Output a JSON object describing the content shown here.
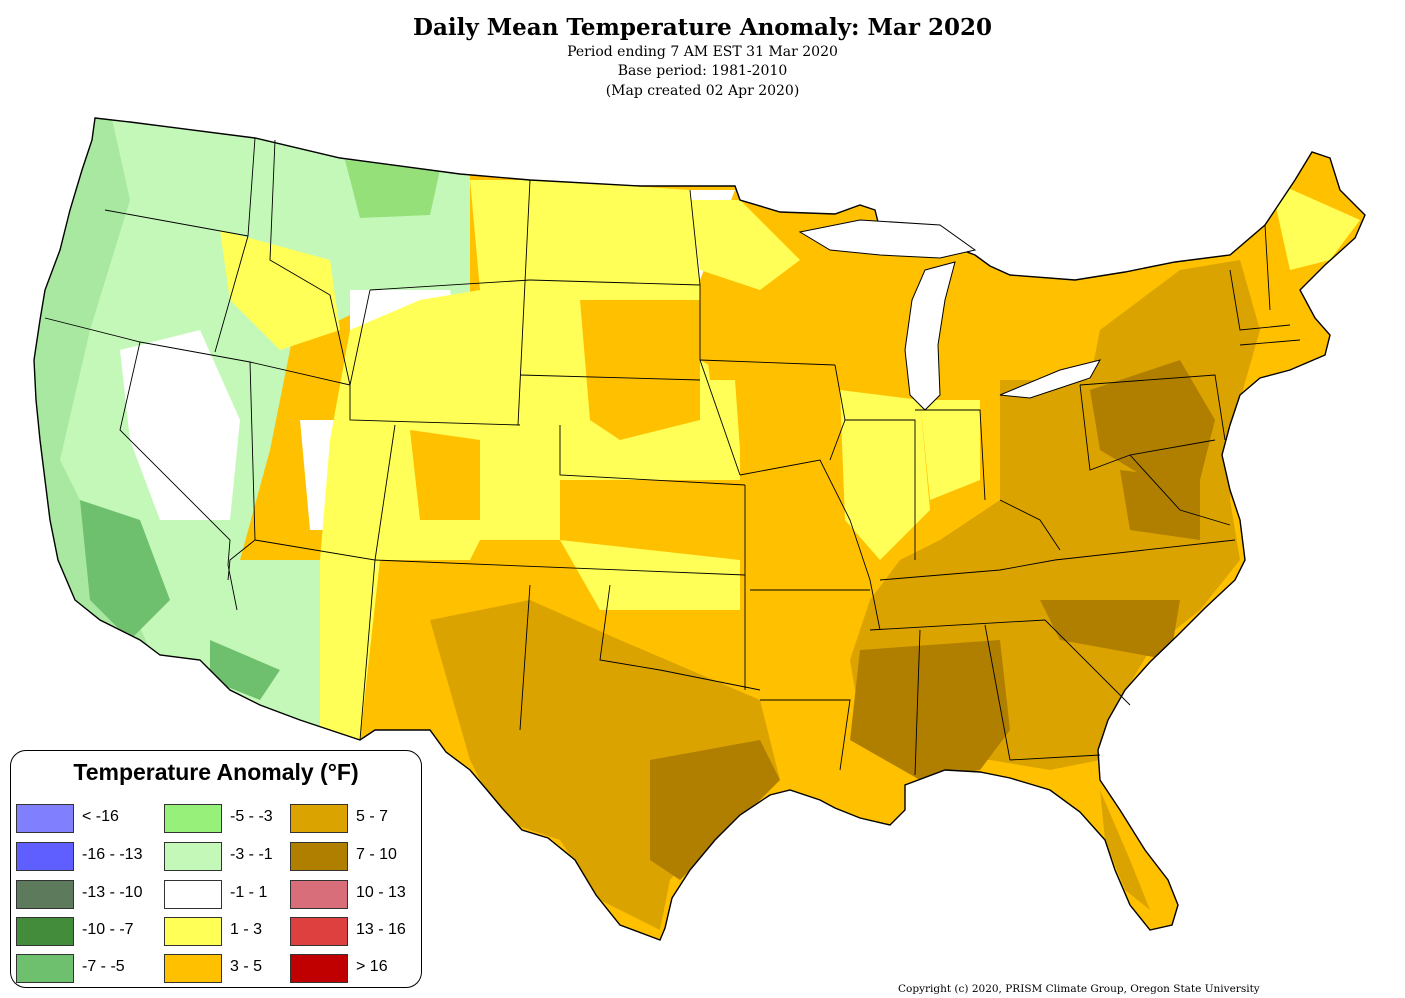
{
  "header": {
    "title": "Daily Mean Temperature Anomaly: Mar 2020",
    "line1": "Period ending 7 AM EST 31 Mar 2020",
    "line2": "Base period: 1981-2010",
    "line3": "(Map created 02 Apr 2020)"
  },
  "legend": {
    "title": "Temperature Anomaly (°F)",
    "items": [
      {
        "label": "< -16",
        "color": "#8080ff"
      },
      {
        "label": "-16 - -13",
        "color": "#5f5fff"
      },
      {
        "label": "-13 - -10",
        "color": "#5e7a5c"
      },
      {
        "label": "-10 - -7",
        "color": "#438c3c"
      },
      {
        "label": "-7 - -5",
        "color": "#6ec06e"
      },
      {
        "label": "-5 - -3",
        "color": "#96f07a"
      },
      {
        "label": "-3 - -1",
        "color": "#c4f8b8"
      },
      {
        "label": "-1 - 1",
        "color": "#ffffff"
      },
      {
        "label": "1 - 3",
        "color": "#ffff57"
      },
      {
        "label": "3 - 5",
        "color": "#ffc000"
      },
      {
        "label": "5 - 7",
        "color": "#dba300"
      },
      {
        "label": "7 - 10",
        "color": "#b07f00"
      },
      {
        "label": "10 - 13",
        "color": "#d86e7a"
      },
      {
        "label": "13 - 16",
        "color": "#de4040"
      },
      {
        "label": "> 16",
        "color": "#c00000"
      }
    ]
  },
  "copyright": "Copyright (c) 2020, PRISM Climate Group, Oregon State University"
}
